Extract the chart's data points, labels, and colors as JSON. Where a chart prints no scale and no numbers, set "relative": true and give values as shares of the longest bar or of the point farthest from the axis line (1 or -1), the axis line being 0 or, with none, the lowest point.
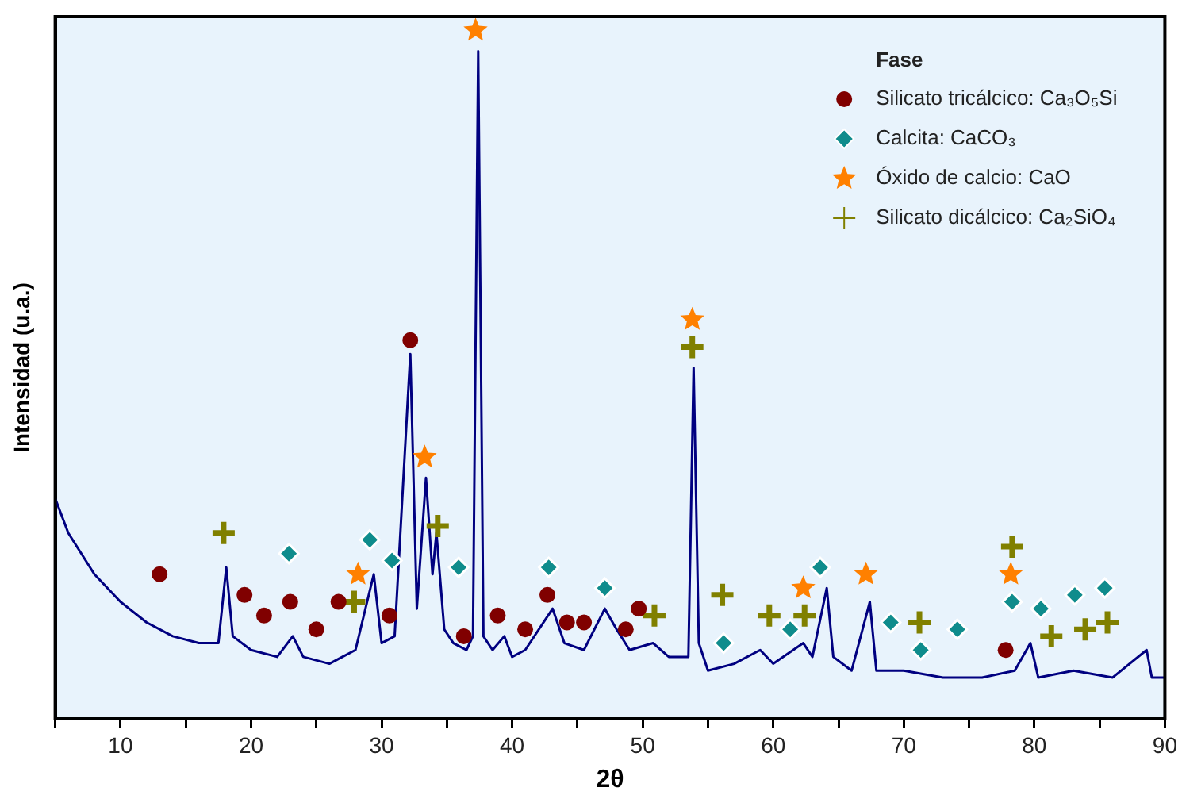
{
  "chart_data": {
    "type": "line",
    "relative": true,
    "xlabel": "2θ",
    "ylabel": "Intensidad (u.a.)",
    "legend_title": "Fase",
    "legend": "top right",
    "grid": false,
    "xlim": [
      5,
      90
    ],
    "xticks": [
      {
        "value": 5,
        "label": null
      },
      10,
      {
        "value": 15,
        "label": null
      },
      20,
      {
        "value": 25,
        "label": null
      },
      30,
      {
        "value": 35,
        "label": null
      },
      40,
      {
        "value": 45,
        "label": null
      },
      50,
      {
        "value": 55,
        "label": null
      },
      60,
      {
        "value": 65,
        "label": null
      },
      70,
      {
        "value": 75,
        "label": null
      },
      80,
      {
        "value": 85,
        "label": null
      },
      90
    ],
    "series": [
      {
        "type": "line",
        "color": "#000080",
        "marker": "none",
        "x": [
          5,
          6,
          8,
          10,
          12,
          14,
          16,
          17.5,
          18.1,
          18.6,
          20,
          22,
          23.2,
          24,
          26,
          27,
          28,
          29.4,
          30,
          31,
          32.2,
          32.7,
          33.4,
          33.9,
          34.2,
          34.8,
          35.5,
          36.5,
          37.0,
          37.4,
          37.8,
          38.5,
          39.4,
          40,
          41,
          43.1,
          44,
          45.5,
          47.1,
          48,
          49,
          50.8,
          52,
          53.5,
          53.9,
          54.3,
          55,
          57,
          59,
          60,
          62.3,
          63,
          64.1,
          64.6,
          66,
          67.4,
          67.9,
          70,
          73,
          76,
          78.5,
          79.7,
          80.3,
          83,
          86,
          88.6,
          89,
          90
        ],
        "values": [
          0.32,
          0.27,
          0.21,
          0.17,
          0.14,
          0.12,
          0.11,
          0.11,
          0.22,
          0.12,
          0.1,
          0.09,
          0.12,
          0.09,
          0.08,
          0.09,
          0.1,
          0.21,
          0.11,
          0.12,
          0.53,
          0.16,
          0.35,
          0.21,
          0.27,
          0.13,
          0.11,
          0.1,
          0.12,
          0.97,
          0.12,
          0.1,
          0.12,
          0.09,
          0.1,
          0.16,
          0.11,
          0.1,
          0.16,
          0.13,
          0.1,
          0.11,
          0.09,
          0.09,
          0.51,
          0.11,
          0.07,
          0.08,
          0.1,
          0.08,
          0.11,
          0.09,
          0.19,
          0.09,
          0.07,
          0.17,
          0.07,
          0.07,
          0.06,
          0.06,
          0.07,
          0.11,
          0.06,
          0.07,
          0.06,
          0.1,
          0.06,
          0.06
        ]
      },
      {
        "type": "scatter",
        "name": "Silicato tricálcico: Ca₃O₅Si",
        "color": "#800000",
        "marker": "circle",
        "x": [
          13.0,
          19.5,
          21.0,
          23.0,
          25.0,
          26.7,
          30.6,
          32.2,
          36.3,
          38.9,
          41.0,
          42.7,
          44.2,
          45.5,
          48.7,
          49.7,
          77.8
        ],
        "values": [
          0.21,
          0.18,
          0.15,
          0.17,
          0.13,
          0.17,
          0.15,
          0.55,
          0.12,
          0.15,
          0.13,
          0.18,
          0.14,
          0.14,
          0.13,
          0.16,
          0.1
        ]
      },
      {
        "type": "scatter",
        "name": "Calcita: CaCO₃",
        "color": "#0f8c8c",
        "marker": "diamond",
        "x": [
          22.9,
          29.1,
          30.8,
          35.9,
          42.8,
          47.1,
          56.2,
          61.3,
          63.6,
          69.0,
          71.3,
          74.1,
          78.3,
          80.5,
          83.1,
          85.4
        ],
        "values": [
          0.24,
          0.26,
          0.23,
          0.22,
          0.22,
          0.19,
          0.11,
          0.13,
          0.22,
          0.14,
          0.1,
          0.13,
          0.17,
          0.16,
          0.18,
          0.19
        ]
      },
      {
        "type": "scatter",
        "name": "Óxido de calcio: CaO",
        "color": "#ff8000",
        "marker": "star",
        "x": [
          28.2,
          33.3,
          37.2,
          53.8,
          62.3,
          67.1,
          78.2
        ],
        "values": [
          0.21,
          0.38,
          1.0,
          0.58,
          0.19,
          0.21,
          0.21
        ]
      },
      {
        "type": "scatter",
        "name": "Silicato dicálcico: Ca₂SiO₄",
        "color": "#808000",
        "marker": "cross",
        "x": [
          17.9,
          27.9,
          34.3,
          50.9,
          53.8,
          56.1,
          59.7,
          62.4,
          71.2,
          78.3,
          81.3,
          83.9,
          85.6
        ],
        "values": [
          0.27,
          0.17,
          0.28,
          0.15,
          0.54,
          0.18,
          0.15,
          0.15,
          0.14,
          0.25,
          0.12,
          0.13,
          0.14
        ]
      }
    ]
  }
}
